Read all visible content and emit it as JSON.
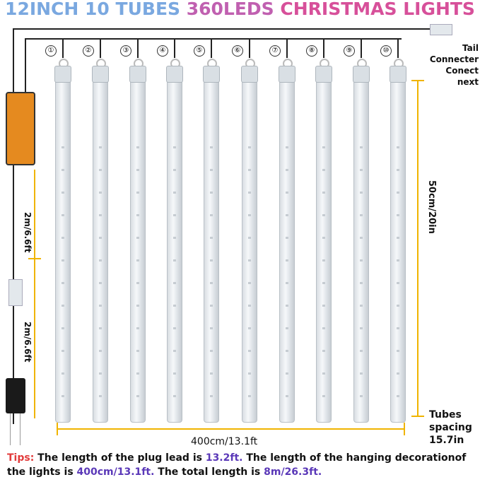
{
  "title": {
    "part1": "12INCH 10 TUBES ",
    "part2": "360LEDS ",
    "part3": "CHRISTMAS LIGHTS"
  },
  "tube_numbers": [
    "①",
    "②",
    "③",
    "④",
    "⑤",
    "⑥",
    "⑦",
    "⑧",
    "⑨",
    "⑩"
  ],
  "tail": {
    "line1": "Tail Connecter",
    "line2": "Conect next"
  },
  "height_dim": "50cm/20in",
  "width_dim": "400cm/13.1ft",
  "spacing": {
    "line1": "Tubes",
    "line2": "spacing",
    "line3": "15.7in"
  },
  "lead_dims": [
    "2m/6.6ft",
    "2m/6.6ft"
  ],
  "tips": {
    "label": "Tips:",
    "t1": " The length of the plug lead is ",
    "v1": "13.2ft.",
    "t2": " The length of the hanging decorationof the lights is ",
    "v2": "400cm/13.1ft.",
    "t3": " The total length is ",
    "v3": "8m/26.3ft."
  },
  "colors": {
    "dimension": "#f0b400",
    "controller": "#e58a1f"
  }
}
